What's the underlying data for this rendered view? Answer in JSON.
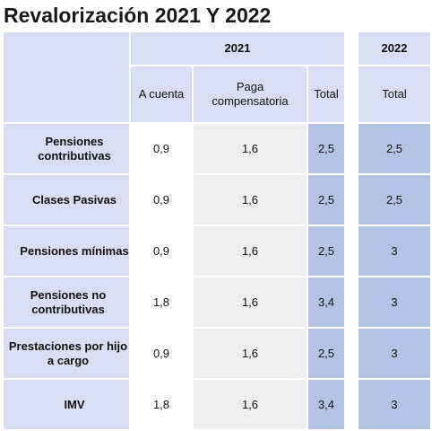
{
  "title": "Revalorización 2021 Y 2022",
  "table": {
    "year_2021": "2021",
    "year_2022": "2022",
    "sub_headers": [
      "A cuenta",
      "Paga\ncompensatoria",
      "Total",
      "Total"
    ],
    "rows": [
      {
        "label": "Pensiones contributivas",
        "a_cuenta": "0,9",
        "paga": "1,6",
        "total_2021": "2,5",
        "total_2022": "2,5"
      },
      {
        "label": "Clases Pasivas",
        "a_cuenta": "0,9",
        "paga": "1,6",
        "total_2021": "2,5",
        "total_2022": "2,5"
      },
      {
        "label": "Pensiones mínimas",
        "a_cuenta": "0,9",
        "paga": "1,6",
        "total_2021": "2,5",
        "total_2022": "3"
      },
      {
        "label": "Pensiones no contributivas",
        "a_cuenta": "1,8",
        "paga": "1,6",
        "total_2021": "3,4",
        "total_2022": "3"
      },
      {
        "label": "Prestaciones por hijo a cargo",
        "a_cuenta": "0,9",
        "paga": "1,6",
        "total_2021": "2,5",
        "total_2022": "3"
      },
      {
        "label": "IMV",
        "a_cuenta": "1,8",
        "paga": "1,6",
        "total_2021": "3,4",
        "total_2022": "3"
      }
    ]
  }
}
